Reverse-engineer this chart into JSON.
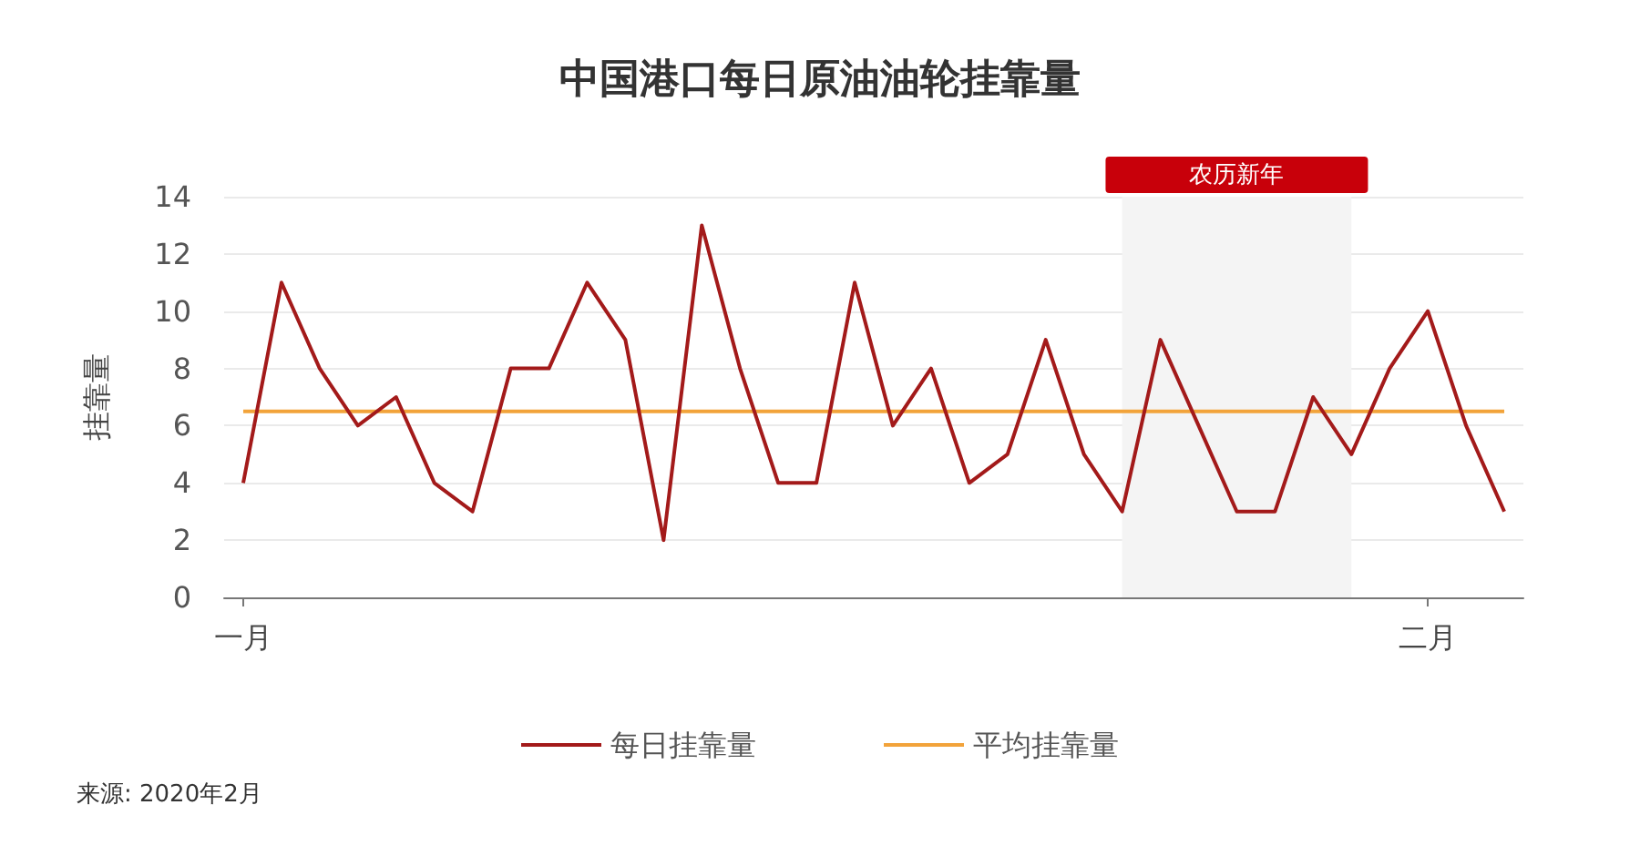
{
  "chart_data": {
    "type": "line",
    "title": "中国港口每日原油油轮挂靠量",
    "ylabel": "挂靠量",
    "categories": [
      "一月",
      null,
      null,
      null,
      null,
      null,
      null,
      null,
      null,
      null,
      null,
      null,
      null,
      null,
      null,
      null,
      null,
      null,
      null,
      null,
      null,
      null,
      null,
      null,
      null,
      null,
      null,
      null,
      null,
      null,
      null,
      "二月",
      null,
      null
    ],
    "series": [
      {
        "name": "每日挂靠量",
        "color": "#a31a1a",
        "values": [
          4,
          11,
          8,
          6,
          7,
          4,
          3,
          8,
          8,
          11,
          9,
          2,
          13,
          8,
          4,
          4,
          11,
          6,
          8,
          4,
          5,
          9,
          5,
          3,
          9,
          6,
          3,
          3,
          7,
          5,
          8,
          10,
          6,
          3
        ]
      },
      {
        "name": "平均挂靠量",
        "color": "#f2a33a",
        "values": [
          6.5,
          6.5,
          6.5,
          6.5,
          6.5,
          6.5,
          6.5,
          6.5,
          6.5,
          6.5,
          6.5,
          6.5,
          6.5,
          6.5,
          6.5,
          6.5,
          6.5,
          6.5,
          6.5,
          6.5,
          6.5,
          6.5,
          6.5,
          6.5,
          6.5,
          6.5,
          6.5,
          6.5,
          6.5,
          6.5,
          6.5,
          6.5,
          6.5,
          6.5
        ]
      }
    ],
    "ylim": [
      0,
      14
    ],
    "yticks": [
      0,
      2,
      4,
      6,
      8,
      10,
      12,
      14
    ],
    "grid": "y",
    "legend": "bottom",
    "marker": "none",
    "line_style": "solid",
    "annotations": [
      "农历新年",
      "来源: 2020年2月"
    ]
  }
}
